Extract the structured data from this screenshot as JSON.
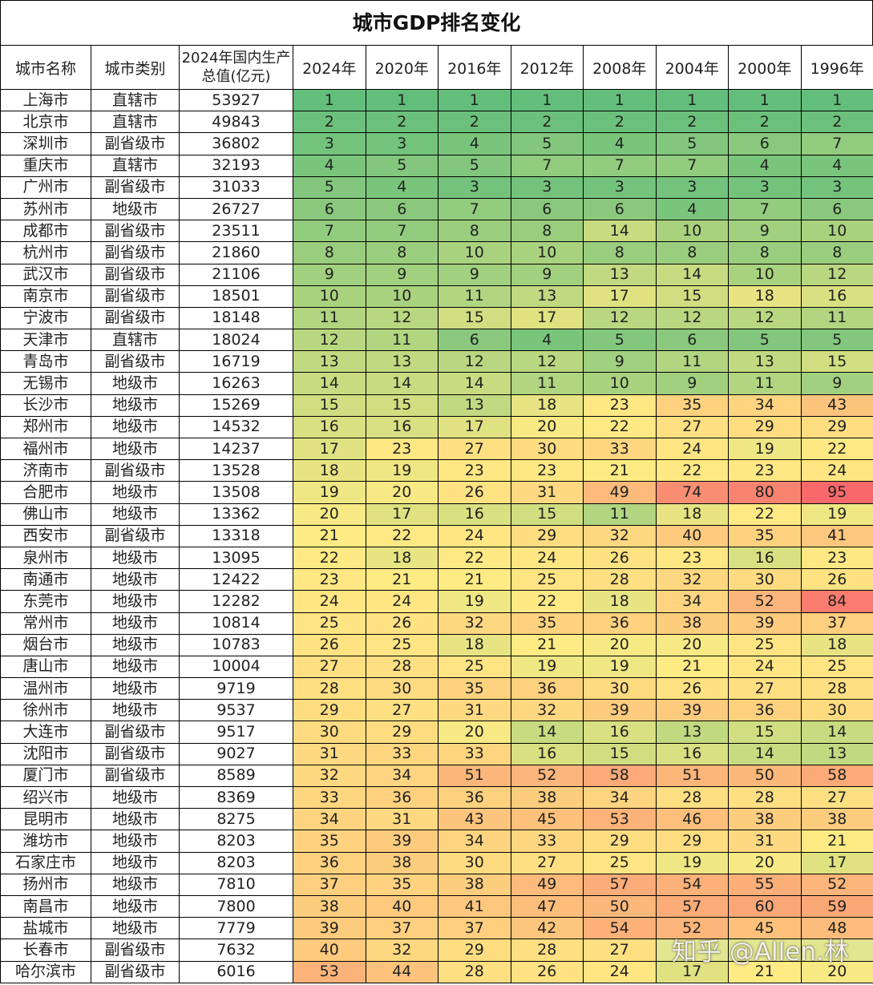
{
  "title": "城市GDP排名变化",
  "table": {
    "columns": [
      "城市名称",
      "城市类别",
      "2024年国内生产总值(亿元)",
      "2024年",
      "2020年",
      "2016年",
      "2012年",
      "2008年",
      "2004年",
      "2000年",
      "1996年"
    ],
    "rows": [
      [
        "上海市",
        "直辖市",
        53927,
        1,
        1,
        1,
        1,
        1,
        1,
        1,
        1
      ],
      [
        "北京市",
        "直辖市",
        49843,
        2,
        2,
        2,
        2,
        2,
        2,
        2,
        2
      ],
      [
        "深圳市",
        "副省级市",
        36802,
        3,
        3,
        4,
        5,
        4,
        5,
        6,
        7
      ],
      [
        "重庆市",
        "直辖市",
        32193,
        4,
        5,
        5,
        7,
        7,
        7,
        4,
        4
      ],
      [
        "广州市",
        "副省级市",
        31033,
        5,
        4,
        3,
        3,
        3,
        3,
        3,
        3
      ],
      [
        "苏州市",
        "地级市",
        26727,
        6,
        6,
        7,
        6,
        6,
        4,
        7,
        6
      ],
      [
        "成都市",
        "副省级市",
        23511,
        7,
        7,
        8,
        8,
        14,
        10,
        9,
        10
      ],
      [
        "杭州市",
        "副省级市",
        21860,
        8,
        8,
        10,
        10,
        8,
        8,
        8,
        8
      ],
      [
        "武汉市",
        "副省级市",
        21106,
        9,
        9,
        9,
        9,
        13,
        14,
        10,
        12
      ],
      [
        "南京市",
        "副省级市",
        18501,
        10,
        10,
        11,
        13,
        17,
        15,
        18,
        16
      ],
      [
        "宁波市",
        "副省级市",
        18148,
        11,
        12,
        15,
        17,
        12,
        12,
        12,
        11
      ],
      [
        "天津市",
        "直辖市",
        18024,
        12,
        11,
        6,
        4,
        5,
        6,
        5,
        5
      ],
      [
        "青岛市",
        "副省级市",
        16719,
        13,
        13,
        12,
        12,
        9,
        11,
        13,
        15
      ],
      [
        "无锡市",
        "地级市",
        16263,
        14,
        14,
        14,
        11,
        10,
        9,
        11,
        9
      ],
      [
        "长沙市",
        "地级市",
        15269,
        15,
        15,
        13,
        18,
        23,
        35,
        34,
        43
      ],
      [
        "郑州市",
        "地级市",
        14532,
        16,
        16,
        17,
        20,
        22,
        27,
        29,
        29
      ],
      [
        "福州市",
        "地级市",
        14237,
        17,
        23,
        27,
        30,
        33,
        24,
        19,
        22
      ],
      [
        "济南市",
        "副省级市",
        13528,
        18,
        19,
        23,
        23,
        21,
        22,
        23,
        24
      ],
      [
        "合肥市",
        "地级市",
        13508,
        19,
        20,
        26,
        31,
        49,
        74,
        80,
        95
      ],
      [
        "佛山市",
        "地级市",
        13362,
        20,
        17,
        16,
        15,
        11,
        18,
        22,
        19
      ],
      [
        "西安市",
        "副省级市",
        13318,
        21,
        22,
        24,
        29,
        32,
        40,
        35,
        41
      ],
      [
        "泉州市",
        "地级市",
        13095,
        22,
        18,
        22,
        24,
        26,
        23,
        16,
        23
      ],
      [
        "南通市",
        "地级市",
        12422,
        23,
        21,
        21,
        25,
        28,
        32,
        30,
        26
      ],
      [
        "东莞市",
        "地级市",
        12282,
        24,
        24,
        19,
        22,
        18,
        34,
        52,
        84
      ],
      [
        "常州市",
        "地级市",
        10814,
        25,
        26,
        32,
        35,
        36,
        38,
        39,
        37
      ],
      [
        "烟台市",
        "地级市",
        10783,
        26,
        25,
        18,
        21,
        20,
        20,
        25,
        18
      ],
      [
        "唐山市",
        "地级市",
        10004,
        27,
        28,
        25,
        19,
        19,
        21,
        24,
        25
      ],
      [
        "温州市",
        "地级市",
        9719,
        28,
        30,
        35,
        36,
        30,
        26,
        27,
        28
      ],
      [
        "徐州市",
        "地级市",
        9537,
        29,
        27,
        31,
        32,
        39,
        39,
        36,
        30
      ],
      [
        "大连市",
        "副省级市",
        9517,
        30,
        29,
        20,
        14,
        16,
        13,
        15,
        14
      ],
      [
        "沈阳市",
        "副省级市",
        9027,
        31,
        33,
        33,
        16,
        15,
        16,
        14,
        13
      ],
      [
        "厦门市",
        "副省级市",
        8589,
        32,
        34,
        51,
        52,
        58,
        51,
        50,
        58
      ],
      [
        "绍兴市",
        "地级市",
        8369,
        33,
        36,
        36,
        38,
        34,
        28,
        28,
        27
      ],
      [
        "昆明市",
        "地级市",
        8275,
        34,
        31,
        43,
        45,
        53,
        46,
        38,
        38
      ],
      [
        "潍坊市",
        "地级市",
        8203,
        35,
        39,
        34,
        33,
        29,
        29,
        31,
        21
      ],
      [
        "石家庄市",
        "地级市",
        8203,
        36,
        38,
        30,
        27,
        25,
        19,
        20,
        17
      ],
      [
        "扬州市",
        "地级市",
        7810,
        37,
        35,
        38,
        49,
        57,
        54,
        55,
        52
      ],
      [
        "南昌市",
        "地级市",
        7800,
        38,
        40,
        41,
        47,
        50,
        57,
        60,
        59
      ],
      [
        "盐城市",
        "地级市",
        7779,
        39,
        37,
        37,
        42,
        54,
        52,
        45,
        48
      ],
      [
        "长春市",
        "副省级市",
        7632,
        40,
        32,
        29,
        28,
        27,
        null,
        null,
        null
      ],
      [
        "哈尔滨市",
        "副省级市",
        6016,
        53,
        44,
        28,
        26,
        24,
        17,
        21,
        20
      ]
    ]
  },
  "color_scale": {
    "low": "#63be7b",
    "mid": "#ffeb84",
    "high": "#f8696b"
  },
  "watermark": "知乎 @Allen.林"
}
